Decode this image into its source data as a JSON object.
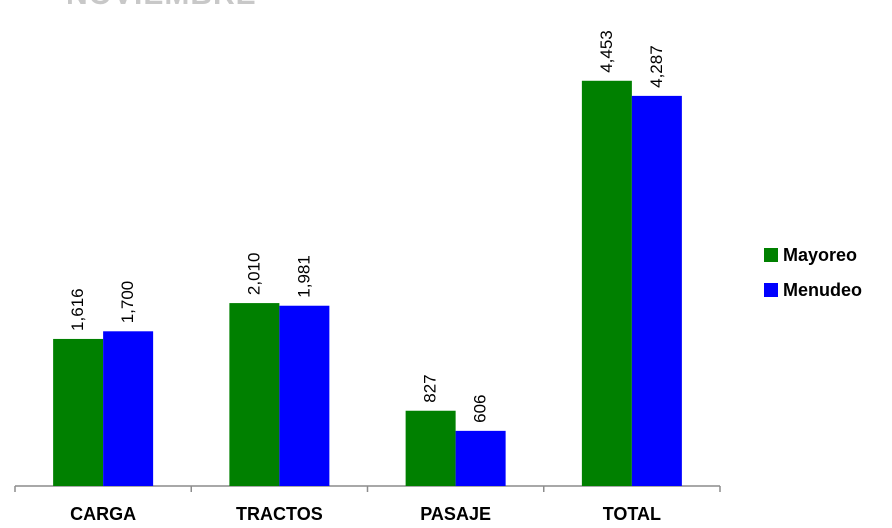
{
  "title_fragment": "NOVIEMBRE",
  "chart_data": {
    "type": "bar",
    "categories": [
      "CARGA",
      "TRACTOS",
      "PASAJE",
      "TOTAL"
    ],
    "series": [
      {
        "name": "Mayoreo",
        "values": [
          1616,
          2010,
          827,
          4453
        ],
        "labels": [
          "1,616",
          "2,010",
          "827",
          "4,453"
        ],
        "color": "#008000"
      },
      {
        "name": "Menudeo",
        "values": [
          1700,
          1981,
          606,
          4287
        ],
        "labels": [
          "1,700",
          "1,981",
          "606",
          "4,287"
        ],
        "color": "#0000ff"
      }
    ],
    "ylim": [
      0,
      5000
    ],
    "grid": false,
    "legend_position": "right"
  }
}
